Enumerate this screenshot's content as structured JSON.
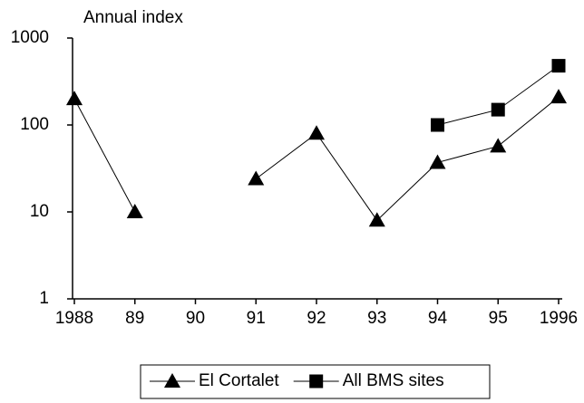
{
  "chart_data": {
    "type": "line",
    "y_label": "Annual index",
    "categories": [
      "1988",
      "89",
      "90",
      "91",
      "92",
      "93",
      "94",
      "95",
      "1996"
    ],
    "series": [
      {
        "name": "El Cortalet",
        "color": "#000000",
        "marker": "triangle",
        "values": [
          200,
          10,
          null,
          24,
          80,
          8,
          37,
          57,
          210
        ]
      },
      {
        "name": "All BMS sites",
        "color": "#000000",
        "marker": "square",
        "values": [
          null,
          null,
          null,
          null,
          null,
          null,
          100,
          150,
          480
        ]
      }
    ],
    "ylim": [
      1,
      1000
    ],
    "yticks": [
      1,
      10,
      100,
      1000
    ],
    "log_scale": true,
    "legend": "bottom"
  }
}
